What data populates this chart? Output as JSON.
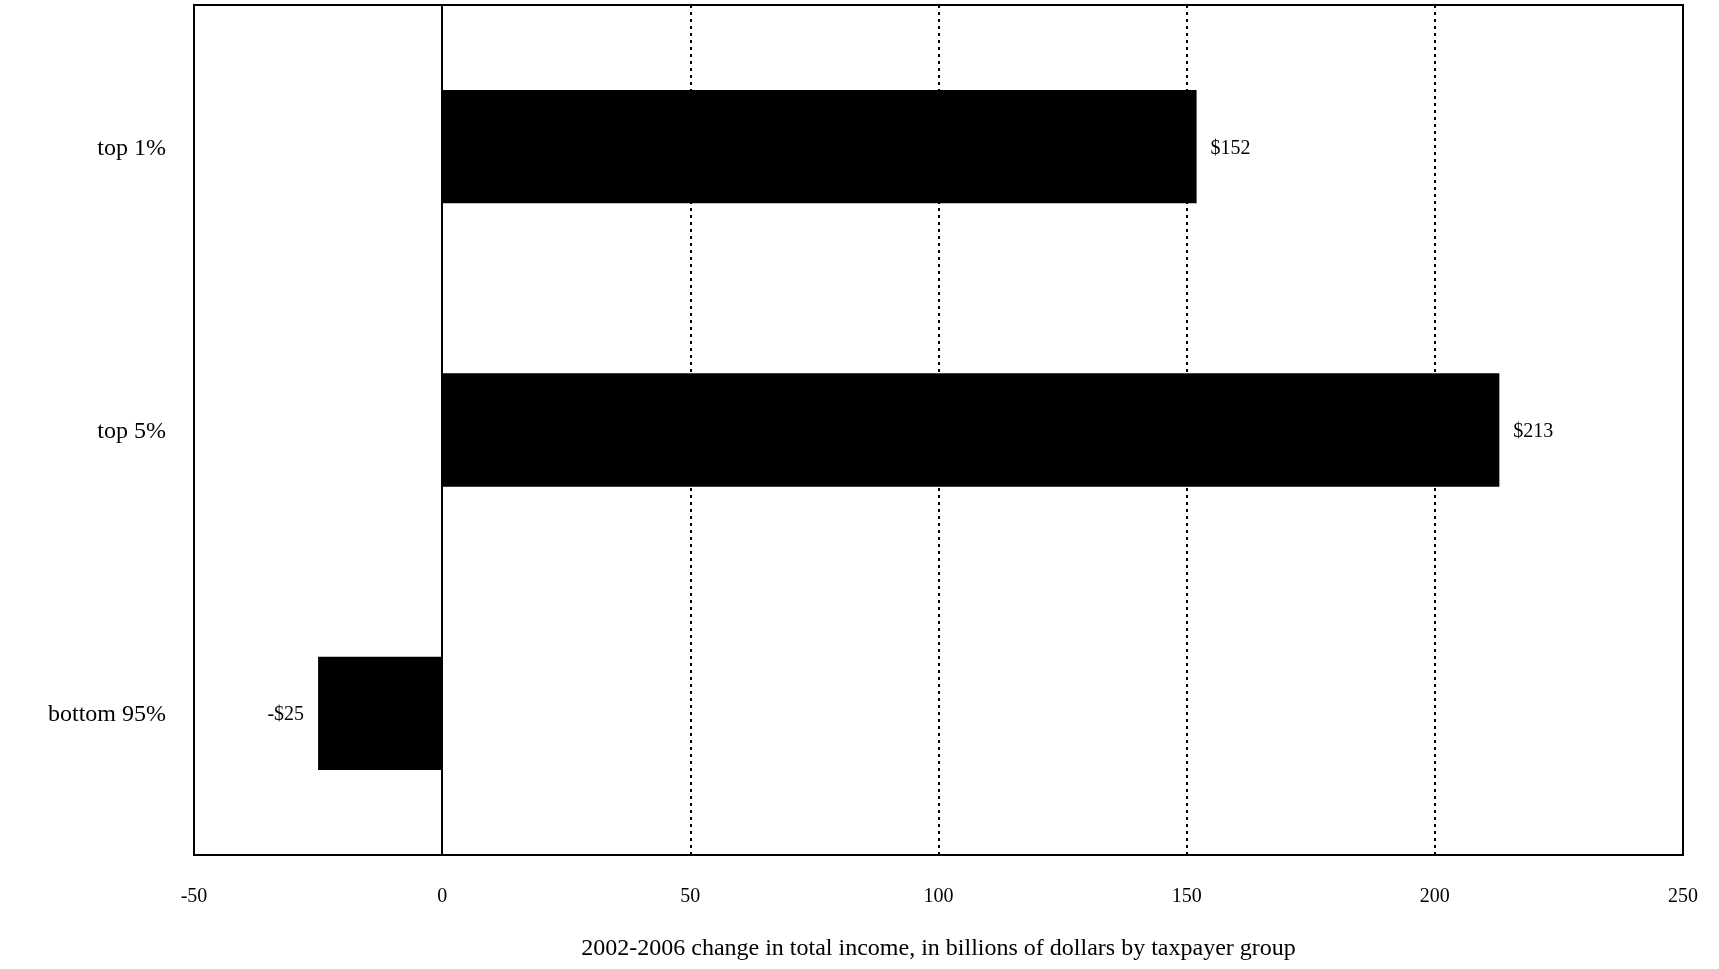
{
  "chart_data": {
    "type": "bar",
    "orientation": "horizontal",
    "categories": [
      "top 1%",
      "top 5%",
      "bottom 95%"
    ],
    "values": [
      152,
      213,
      -25
    ],
    "value_labels": [
      "$152",
      "$213",
      "-$25"
    ],
    "color": "#000000",
    "xlabel": "2002-2006 change in total income, in billions of dollars by taxpayer group",
    "xlim": [
      -50,
      250
    ],
    "xticks": [
      -50,
      0,
      50,
      100,
      150,
      200,
      250
    ],
    "grid": "x"
  }
}
